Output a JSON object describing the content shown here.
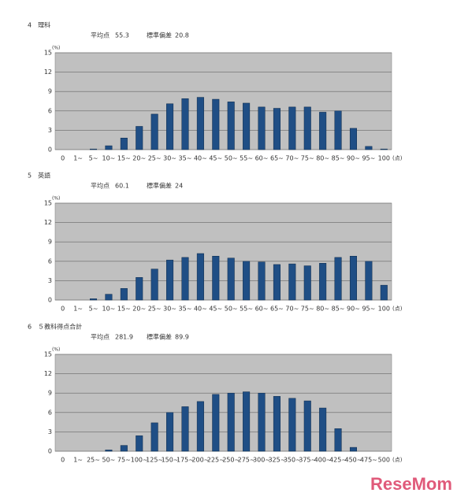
{
  "chart_data": [
    {
      "type": "bar",
      "title": "4　理科",
      "mean_label": "平均点",
      "mean": 55.3,
      "sd_label": "標準偏差",
      "sd": 20.8,
      "y_label": "(%)",
      "x_label": "(点)",
      "categories": [
        "0",
        "1~",
        "5~",
        "10~",
        "15~",
        "20~",
        "25~",
        "30~",
        "35~",
        "40~",
        "45~",
        "50~",
        "55~",
        "60~",
        "65~",
        "70~",
        "75~",
        "80~",
        "85~",
        "90~",
        "95~",
        "100"
      ],
      "values": [
        0,
        0,
        0.1,
        0.6,
        1.8,
        3.6,
        5.5,
        7.1,
        7.9,
        8.1,
        7.8,
        7.4,
        7.2,
        6.6,
        6.4,
        6.6,
        6.6,
        5.8,
        6.0,
        3.3,
        0.5,
        0.1
      ],
      "color": "#1f4e85",
      "ylim": [
        0,
        15
      ],
      "yticks": [
        0,
        3,
        6,
        9,
        12,
        15
      ],
      "grid": true
    },
    {
      "type": "bar",
      "title": "5　英語",
      "mean_label": "平均点",
      "mean": 60.1,
      "sd_label": "標準偏差",
      "sd": 24,
      "y_label": "(%)",
      "x_label": "(点)",
      "categories": [
        "0",
        "1~",
        "5~",
        "10~",
        "15~",
        "20~",
        "25~",
        "30~",
        "35~",
        "40~",
        "45~",
        "50~",
        "55~",
        "60~",
        "65~",
        "70~",
        "75~",
        "80~",
        "85~",
        "90~",
        "95~",
        "100"
      ],
      "values": [
        0,
        0,
        0.2,
        0.9,
        1.8,
        3.5,
        4.8,
        6.2,
        6.6,
        7.2,
        6.8,
        6.5,
        6.0,
        5.9,
        5.5,
        5.6,
        5.3,
        5.7,
        6.6,
        6.8,
        6.0,
        2.3
      ],
      "color": "#1f4e85",
      "ylim": [
        0,
        15
      ],
      "yticks": [
        0,
        3,
        6,
        9,
        12,
        15
      ],
      "grid": true
    },
    {
      "type": "bar",
      "title": "6　５教科得点合計",
      "mean_label": "平均点",
      "mean": 281.9,
      "sd_label": "標準偏差",
      "sd": 89.9,
      "y_label": "(%)",
      "x_label": "(点)",
      "categories": [
        "0",
        "1~",
        "25~",
        "50~",
        "75~",
        "100~",
        "125~",
        "150~",
        "175~",
        "200~",
        "225~",
        "250~",
        "275~",
        "300~",
        "325~",
        "350~",
        "375~",
        "400~",
        "425~",
        "450~",
        "475~",
        "500"
      ],
      "values": [
        0,
        0,
        0,
        0.2,
        0.9,
        2.4,
        4.4,
        6.0,
        6.9,
        7.7,
        8.8,
        9.0,
        9.2,
        9.0,
        8.5,
        8.2,
        7.8,
        6.7,
        3.5,
        0.6,
        0,
        0
      ],
      "color": "#1f4e85",
      "ylim": [
        0,
        15
      ],
      "yticks": [
        0,
        3,
        6,
        9,
        12,
        15
      ],
      "grid": true
    }
  ],
  "watermark": "ReseMom"
}
